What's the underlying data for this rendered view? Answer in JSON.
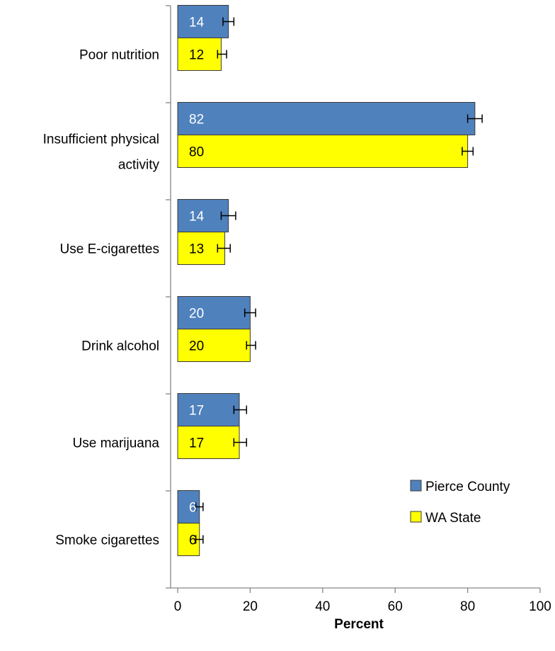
{
  "chart_data": {
    "type": "bar",
    "orientation": "horizontal",
    "categories": [
      "Poor nutrition",
      "Insufficient physical activity",
      "Use E-cigarettes",
      "Drink alcohol",
      "Use marijuana",
      "Smoke cigarettes"
    ],
    "category_lines": [
      [
        "Poor nutrition"
      ],
      [
        "Insufficient physical",
        "activity"
      ],
      [
        "Use E-cigarettes"
      ],
      [
        "Drink alcohol"
      ],
      [
        "Use marijuana"
      ],
      [
        "Smoke cigarettes"
      ]
    ],
    "series": [
      {
        "name": "Pierce County",
        "color": "#4F81BD",
        "label_color": "#ffffff",
        "values": [
          14,
          82,
          14,
          20,
          17,
          6
        ],
        "data_labels": [
          "14",
          "82",
          "14",
          "20",
          "17",
          "6"
        ],
        "error_low": [
          12.5,
          80,
          12,
          18.5,
          15.5,
          5
        ],
        "error_high": [
          15.5,
          84,
          16,
          21.5,
          19,
          7
        ]
      },
      {
        "name": "WA State",
        "color": "#FFFF00",
        "label_color": "#000000",
        "values": [
          12,
          80,
          13,
          20,
          17,
          6
        ],
        "data_labels": [
          "12",
          "80",
          "13",
          "20",
          "17",
          "6"
        ],
        "error_low": [
          11,
          78.5,
          11,
          19,
          15.5,
          5
        ],
        "error_high": [
          13.5,
          81.5,
          14.5,
          21.5,
          19,
          7
        ]
      }
    ],
    "xlabel": "Percent",
    "ylabel": "",
    "title": "",
    "xlim": [
      0,
      100
    ],
    "xticks": [
      "0",
      "20",
      "40",
      "60",
      "80",
      "100"
    ],
    "grid": false,
    "legend_position": "right"
  }
}
